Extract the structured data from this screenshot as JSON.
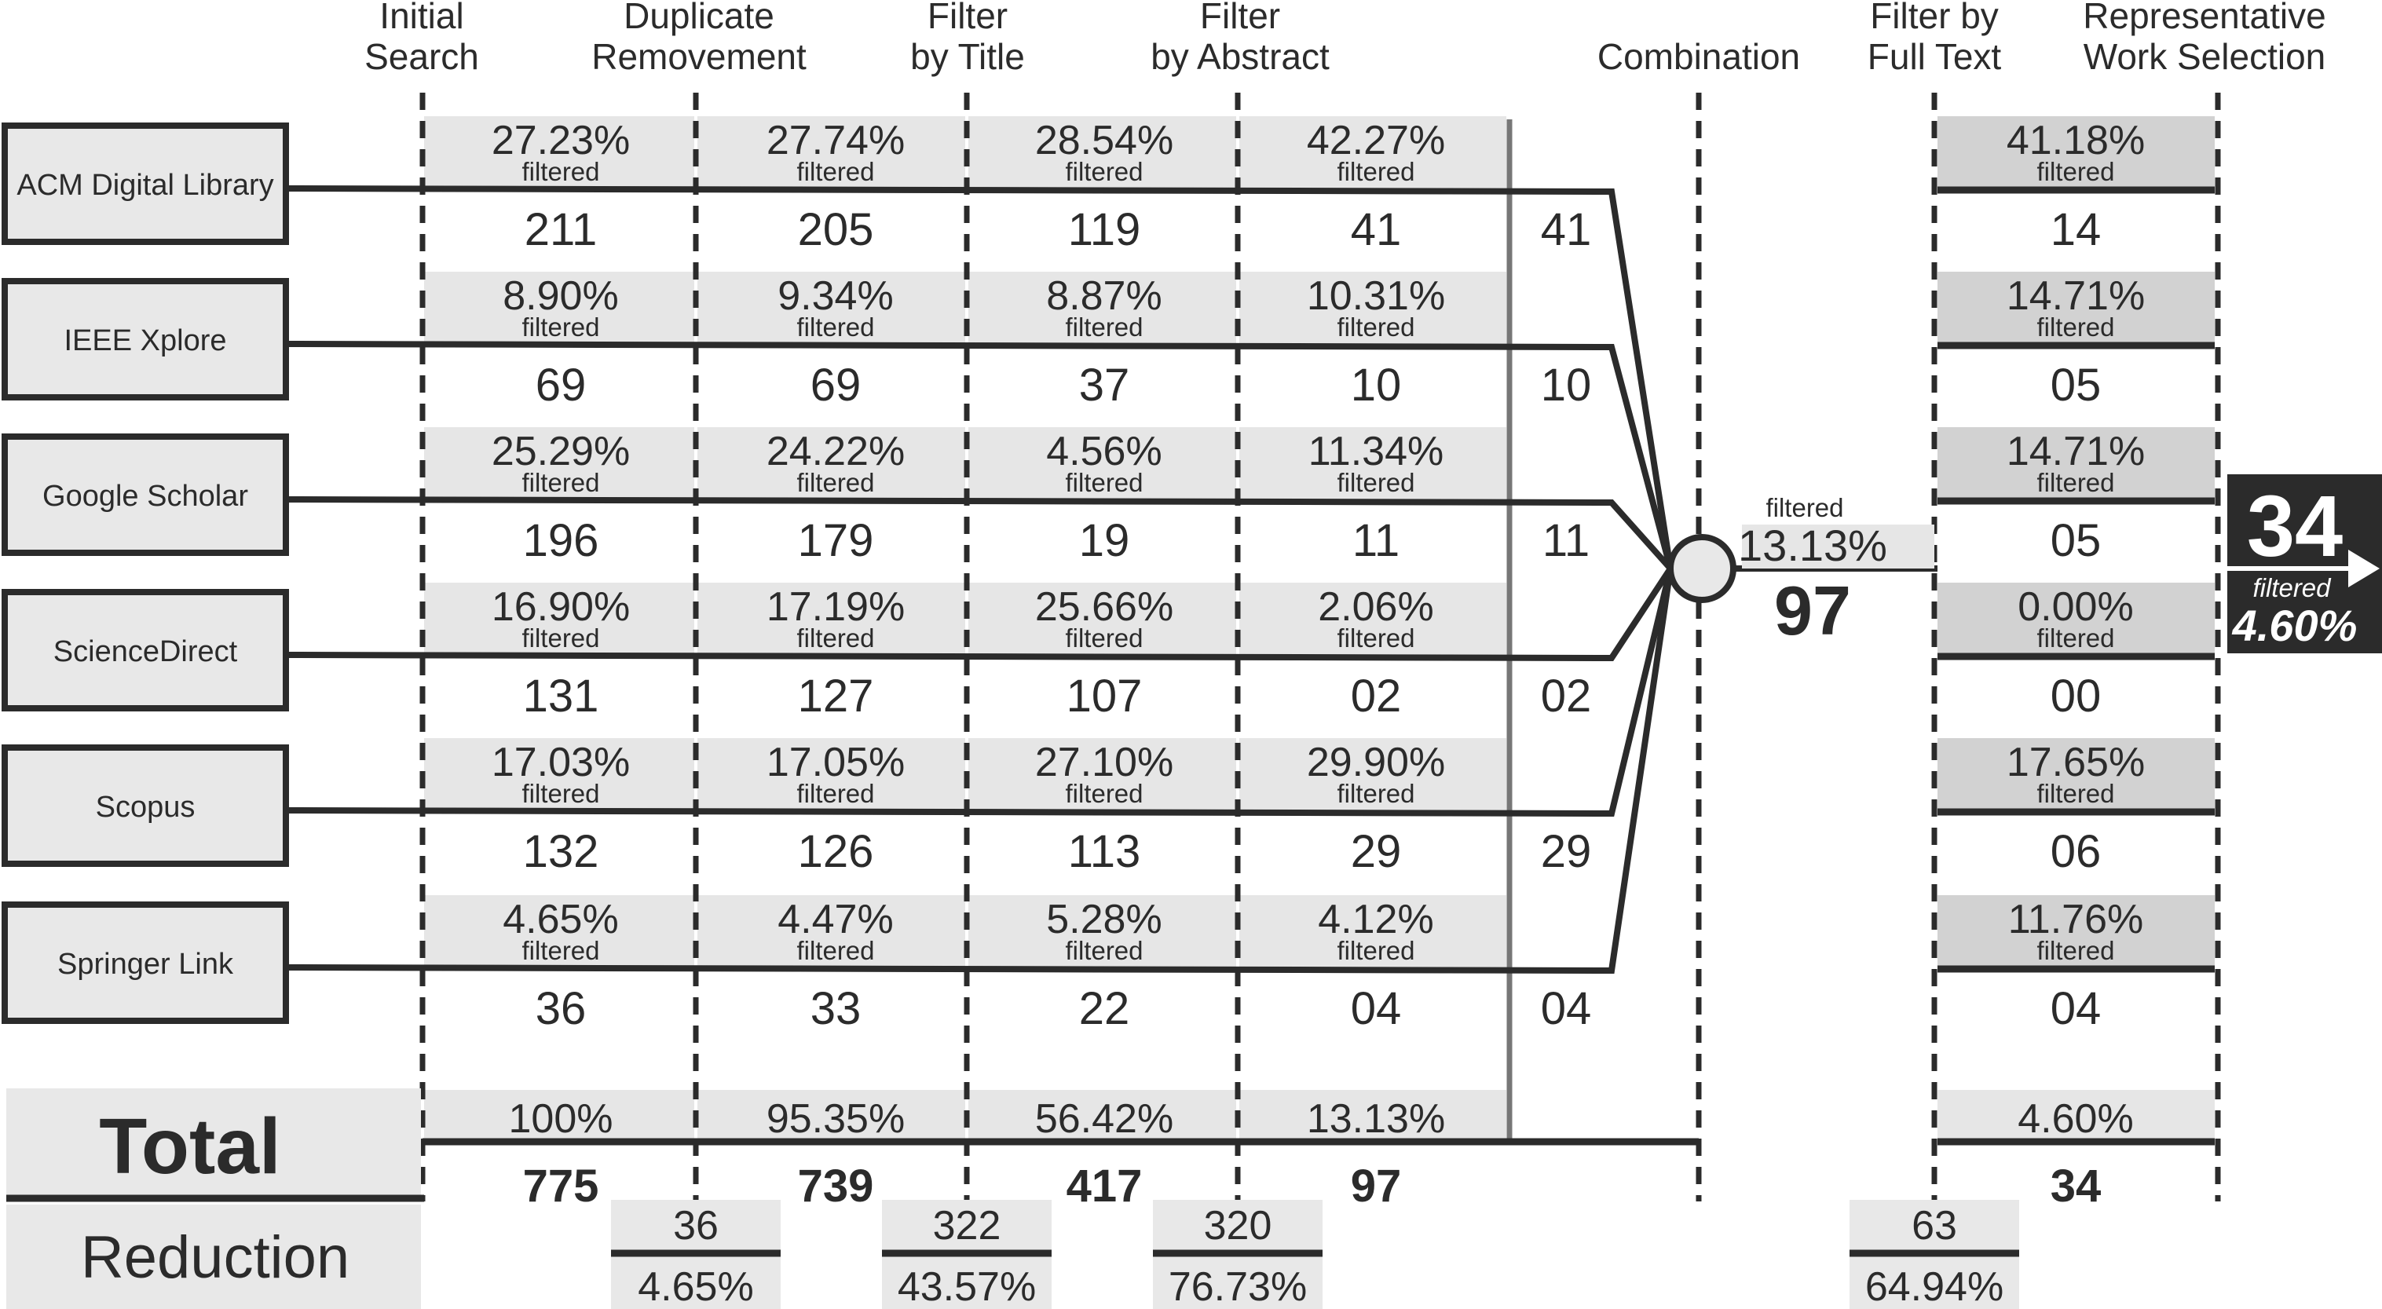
{
  "headers": [
    "Initial\nSearch",
    "Duplicate\nRemovement",
    "Filter\nby Title",
    "Filter\nby Abstract",
    "Combination",
    "Filter by\nFull Text",
    "Representative\nWork Selection"
  ],
  "filtered_label": "filtered",
  "sources": [
    {
      "name": "ACM Digital Library",
      "pcts": [
        "27.23%",
        "27.74%",
        "28.54%",
        "42.27%"
      ],
      "counts": [
        "211",
        "205",
        "119",
        "41"
      ],
      "comb": "41",
      "ft_pct": "41.18%",
      "ft_count": "14"
    },
    {
      "name": "IEEE Xplore",
      "pcts": [
        "8.90%",
        "9.34%",
        "8.87%",
        "10.31%"
      ],
      "counts": [
        "69",
        "69",
        "37",
        "10"
      ],
      "comb": "10",
      "ft_pct": "14.71%",
      "ft_count": "05"
    },
    {
      "name": "Google Scholar",
      "pcts": [
        "25.29%",
        "24.22%",
        "4.56%",
        "11.34%"
      ],
      "counts": [
        "196",
        "179",
        "19",
        "11"
      ],
      "comb": "11",
      "ft_pct": "14.71%",
      "ft_count": "05"
    },
    {
      "name": "ScienceDirect",
      "pcts": [
        "16.90%",
        "17.19%",
        "25.66%",
        "2.06%"
      ],
      "counts": [
        "131",
        "127",
        "107",
        "02"
      ],
      "comb": "02",
      "ft_pct": "0.00%",
      "ft_count": "00"
    },
    {
      "name": "Scopus",
      "pcts": [
        "17.03%",
        "17.05%",
        "27.10%",
        "29.90%"
      ],
      "counts": [
        "132",
        "126",
        "113",
        "29"
      ],
      "comb": "29",
      "ft_pct": "17.65%",
      "ft_count": "06"
    },
    {
      "name": "Springer Link",
      "pcts": [
        "4.65%",
        "4.47%",
        "5.28%",
        "4.12%"
      ],
      "counts": [
        "36",
        "33",
        "22",
        "04"
      ],
      "comb": "04",
      "ft_pct": "11.76%",
      "ft_count": "04"
    }
  ],
  "total": {
    "label": "Total",
    "pcts": [
      "100%",
      "95.35%",
      "56.42%",
      "13.13%"
    ],
    "counts": [
      "775",
      "739",
      "417",
      "97"
    ],
    "ft_pct": "4.60%",
    "ft_count": "34"
  },
  "reduction": {
    "label": "Reduction",
    "items": [
      {
        "count": "36",
        "pct": "4.65%"
      },
      {
        "count": "322",
        "pct": "43.57%"
      },
      {
        "count": "320",
        "pct": "76.73%"
      },
      {
        "count": "63",
        "pct": "64.94%"
      }
    ]
  },
  "combination": {
    "filtered": "filtered",
    "pct": "13.13%",
    "count": "97"
  },
  "final": {
    "count": "34",
    "filtered": "filtered",
    "pct": "4.60%"
  },
  "colors": {
    "ink": "#2b2b2b",
    "light_band": "#e6e6e6",
    "mid_band": "#d2d2d2",
    "box_fill": "#e8e8e8",
    "final_bg": "#2b2b2b"
  }
}
